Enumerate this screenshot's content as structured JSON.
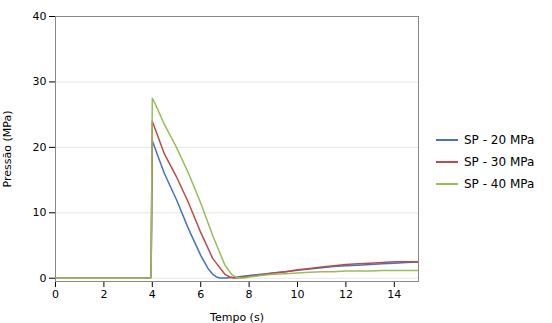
{
  "chart_data": {
    "type": "line",
    "xlabel": "Tempo (s)",
    "ylabel": "Pressão (MPa)",
    "xlim": [
      0,
      15
    ],
    "ylim": [
      -0.5,
      40
    ],
    "xticks": [
      0,
      2,
      4,
      6,
      8,
      10,
      12,
      14
    ],
    "yticks": [
      0,
      10,
      20,
      30,
      40
    ],
    "grid": true,
    "legend": "right",
    "series": [
      {
        "name": "SP - 20 MPa",
        "color": "#4472C4",
        "x": [
          0.0,
          0.3,
          0.6,
          0.9,
          1.2,
          1.5,
          1.8,
          2.1,
          2.4,
          2.7,
          3.0,
          3.3,
          3.6,
          3.85,
          3.95,
          4.0,
          4.05,
          4.2,
          4.5,
          5.0,
          5.5,
          6.0,
          6.3,
          6.5,
          6.65,
          6.8,
          7.0,
          7.5,
          8.0,
          8.5,
          9.0,
          9.5,
          10.0,
          10.5,
          11.0,
          11.5,
          12.0,
          12.5,
          13.0,
          13.5,
          14.0,
          14.5,
          15.0
        ],
        "values": [
          0.0,
          0.0,
          0.0,
          0.0,
          0.0,
          0.0,
          0.0,
          0.0,
          0.0,
          0.0,
          0.0,
          0.0,
          0.0,
          0.05,
          0.1,
          21.0,
          20.5,
          19.0,
          16.0,
          12.0,
          7.5,
          3.5,
          1.5,
          0.6,
          0.2,
          0.05,
          0.05,
          0.2,
          0.4,
          0.6,
          0.8,
          1.0,
          1.2,
          1.4,
          1.6,
          1.8,
          1.9,
          2.0,
          2.1,
          2.2,
          2.3,
          2.4,
          2.5
        ]
      },
      {
        "name": "SP - 30 MPa",
        "color": "#BE4B48",
        "x": [
          0.0,
          0.3,
          0.6,
          0.9,
          1.2,
          1.5,
          1.8,
          2.1,
          2.4,
          2.7,
          3.0,
          3.3,
          3.6,
          3.85,
          3.95,
          4.0,
          4.05,
          4.2,
          4.5,
          5.0,
          5.5,
          6.0,
          6.5,
          7.0,
          7.2,
          7.35,
          7.5,
          8.0,
          8.5,
          9.0,
          9.5,
          10.0,
          10.5,
          11.0,
          11.5,
          12.0,
          12.5,
          13.0,
          13.5,
          14.0,
          14.5,
          15.0
        ],
        "values": [
          0.0,
          0.0,
          0.0,
          0.0,
          0.0,
          0.0,
          0.0,
          0.0,
          0.0,
          0.0,
          0.0,
          0.0,
          0.0,
          0.05,
          0.1,
          24.0,
          23.5,
          22.0,
          19.0,
          15.5,
          11.5,
          7.0,
          3.0,
          0.6,
          0.2,
          0.05,
          0.05,
          0.3,
          0.5,
          0.8,
          1.0,
          1.3,
          1.5,
          1.7,
          1.9,
          2.1,
          2.2,
          2.3,
          2.4,
          2.5,
          2.5,
          2.5
        ]
      },
      {
        "name": "SP - 40 MPa",
        "color": "#9BBB59",
        "x": [
          0.0,
          0.3,
          0.6,
          0.9,
          1.2,
          1.5,
          1.8,
          2.1,
          2.4,
          2.7,
          3.0,
          3.3,
          3.6,
          3.85,
          3.95,
          4.0,
          4.05,
          4.2,
          4.5,
          5.0,
          5.5,
          6.0,
          6.5,
          7.0,
          7.3,
          7.5,
          7.65,
          7.8,
          8.0,
          8.5,
          9.0,
          9.5,
          10.0,
          10.5,
          11.0,
          11.5,
          12.0,
          12.5,
          13.0,
          13.5,
          14.0,
          14.5,
          15.0
        ],
        "values": [
          0.0,
          0.0,
          0.0,
          0.0,
          0.0,
          0.0,
          0.0,
          0.0,
          0.0,
          0.0,
          0.0,
          0.0,
          0.0,
          0.05,
          0.1,
          27.5,
          27.2,
          26.0,
          23.5,
          20.0,
          16.0,
          11.5,
          6.5,
          2.0,
          0.5,
          0.1,
          0.05,
          0.05,
          0.2,
          0.4,
          0.6,
          0.7,
          0.8,
          0.9,
          1.0,
          1.0,
          1.1,
          1.1,
          1.1,
          1.2,
          1.2,
          1.2,
          1.2
        ]
      }
    ]
  }
}
